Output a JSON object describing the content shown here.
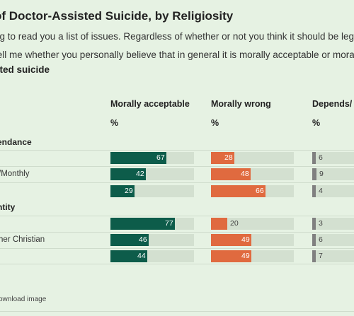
{
  "header": {
    "title": "of Doctor-Assisted Suicide, by Religiosity",
    "line1": "ng to read you a list of issues. Regardless of whether or not you think it should be legal,",
    "line2": "tell me whether you personally believe that in general it is morally acceptable or morally",
    "line3": "sted suicide"
  },
  "colors": {
    "acceptable": "#0d5c4a",
    "wrong": "#e06a3f",
    "depends": "#808080",
    "track": "#d3e0d0",
    "background": "#e6f2e3"
  },
  "chart_data": {
    "type": "bar",
    "series": [
      {
        "name": "Morally acceptable",
        "unit": "%",
        "values": [
          67,
          42,
          29,
          77,
          46,
          44
        ]
      },
      {
        "name": "Morally wrong",
        "unit": "%",
        "values": [
          28,
          48,
          66,
          20,
          49,
          49
        ]
      },
      {
        "name": "Depends/",
        "unit": "%",
        "values": [
          6,
          9,
          4,
          3,
          6,
          7
        ]
      }
    ],
    "groups": [
      {
        "label": "endance",
        "rows": [
          {
            "label": ""
          },
          {
            "label": "/Monthly"
          },
          {
            "label": ""
          }
        ]
      },
      {
        "label": "ntity",
        "rows": [
          {
            "label": ""
          },
          {
            "label": "her Christian"
          },
          {
            "label": ""
          }
        ]
      }
    ],
    "xlim": [
      0,
      100
    ]
  },
  "footer": {
    "download_label": "ownload image"
  }
}
